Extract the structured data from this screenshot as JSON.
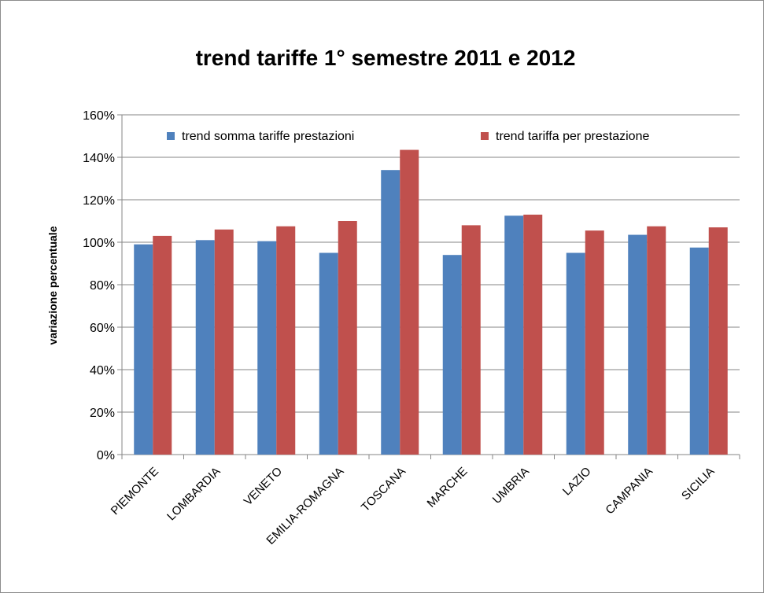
{
  "chart_data": {
    "type": "bar",
    "title": "trend tariffe 1° semestre 2011 e 2012",
    "xlabel": "",
    "ylabel": "variazione percentuale",
    "ylim": [
      0,
      1.6
    ],
    "yticks": [
      "0%",
      "20%",
      "40%",
      "60%",
      "80%",
      "100%",
      "120%",
      "140%",
      "160%"
    ],
    "grid": true,
    "legend_position": "top",
    "categories": [
      "PIEMONTE",
      "LOMBARDIA",
      "VENETO",
      "EMILIA-ROMAGNA",
      "TOSCANA",
      "MARCHE",
      "UMBRIA",
      "LAZIO",
      "CAMPANIA",
      "SICILIA"
    ],
    "series": [
      {
        "name": "trend somma tariffe prestazioni",
        "color": "#4f81bd",
        "values": [
          0.99,
          1.01,
          1.005,
          0.95,
          1.34,
          0.94,
          1.125,
          0.95,
          1.035,
          0.975
        ]
      },
      {
        "name": "trend tariffa per prestazione",
        "color": "#c0504d",
        "values": [
          1.03,
          1.06,
          1.075,
          1.1,
          1.435,
          1.08,
          1.13,
          1.055,
          1.075,
          1.07
        ]
      }
    ]
  }
}
